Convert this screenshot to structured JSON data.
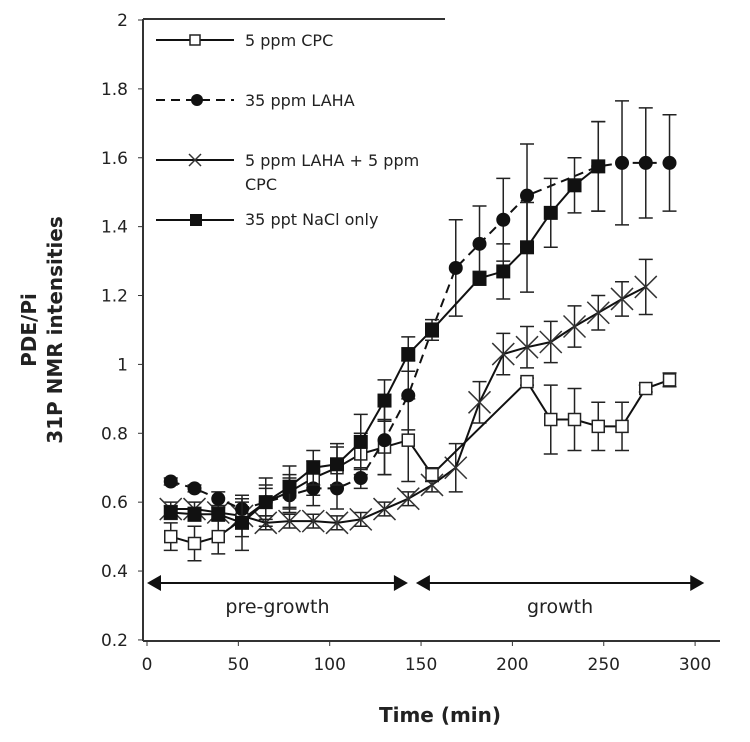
{
  "chart_data": {
    "type": "line",
    "title": "",
    "xlabel": "Time (min)",
    "ylabel": [
      "PDE/Pi",
      "31P NMR intensities"
    ],
    "xlim": [
      0,
      300
    ],
    "ylim": [
      0.2,
      2
    ],
    "xticks": [
      "0",
      "50",
      "100",
      "150",
      "200",
      "250",
      "300"
    ],
    "yticks": [
      "0.2",
      "0.4",
      "0.6",
      "0.8",
      "1",
      "1.2",
      "1.4",
      "1.6",
      "1.8",
      "2"
    ],
    "grid": false,
    "legend_position": "top-left",
    "annotations": [
      {
        "text": "pre-growth",
        "from": 0,
        "to": 145
      },
      {
        "text": "growth",
        "from": 145,
        "to": 305
      }
    ],
    "series": [
      {
        "name": "5 ppm CPC",
        "marker": "open-square",
        "line": "solid",
        "x": [
          13,
          26,
          39,
          52,
          65,
          78,
          91,
          104,
          117,
          130,
          143,
          156,
          208,
          221,
          234,
          247,
          260,
          273,
          286
        ],
        "y": [
          0.5,
          0.48,
          0.5,
          0.55,
          0.6,
          0.63,
          0.67,
          0.7,
          0.74,
          0.76,
          0.78,
          0.68,
          0.95,
          0.84,
          0.84,
          0.82,
          0.82,
          0.93,
          0.955
        ],
        "err": [
          0.04,
          0.05,
          0.05,
          0.05,
          0.05,
          0.05,
          0.05,
          0.06,
          0.06,
          0.08,
          0.12,
          0.02,
          0.01,
          0.1,
          0.09,
          0.07,
          0.07,
          0.01,
          0.02
        ]
      },
      {
        "name": "35 ppm LAHA",
        "marker": "filled-circle",
        "line": "dashed",
        "x": [
          13,
          26,
          39,
          52,
          65,
          78,
          91,
          104,
          117,
          130,
          143,
          156,
          169,
          182,
          195,
          208,
          247,
          260,
          273,
          286
        ],
        "y": [
          0.66,
          0.64,
          0.61,
          0.58,
          0.6,
          0.62,
          0.64,
          0.64,
          0.67,
          0.78,
          0.91,
          1.1,
          1.28,
          1.35,
          1.42,
          1.49,
          1.575,
          1.585,
          1.585,
          1.585
        ],
        "err": [
          0.01,
          0.01,
          0.02,
          0.03,
          0.04,
          0.05,
          0.05,
          0.06,
          0.03,
          0.1,
          0.1,
          0.02,
          0.14,
          0.11,
          0.12,
          0.15,
          0.13,
          0.18,
          0.16,
          0.14
        ]
      },
      {
        "name": "5 ppm LAHA + 5 ppm CPC",
        "marker": "cross",
        "line": "solid",
        "x": [
          13,
          26,
          39,
          52,
          65,
          78,
          91,
          104,
          117,
          130,
          143,
          156,
          169,
          182,
          195,
          208,
          221,
          234,
          247,
          260,
          273
        ],
        "y": [
          0.58,
          0.58,
          0.57,
          0.56,
          0.54,
          0.545,
          0.545,
          0.54,
          0.55,
          0.58,
          0.61,
          0.65,
          0.7,
          0.89,
          1.03,
          1.05,
          1.065,
          1.11,
          1.15,
          1.19,
          1.225
        ],
        "err": [
          0.02,
          0.02,
          0.02,
          0.02,
          0.02,
          0.02,
          0.02,
          0.02,
          0.02,
          0.02,
          0.02,
          0.02,
          0.07,
          0.06,
          0.06,
          0.06,
          0.06,
          0.06,
          0.05,
          0.05,
          0.08
        ]
      },
      {
        "name": "35 ppt NaCl only",
        "marker": "filled-square",
        "line": "solid",
        "x": [
          13,
          26,
          39,
          52,
          65,
          78,
          91,
          104,
          117,
          130,
          143,
          156,
          182,
          195,
          208,
          221,
          234,
          247
        ],
        "y": [
          0.57,
          0.565,
          0.565,
          0.54,
          0.6,
          0.645,
          0.7,
          0.71,
          0.775,
          0.895,
          1.03,
          1.1,
          1.25,
          1.27,
          1.34,
          1.44,
          1.52,
          1.575
        ],
        "err": [
          0.02,
          0.02,
          0.02,
          0.08,
          0.07,
          0.06,
          0.05,
          0.06,
          0.08,
          0.06,
          0.05,
          0.03,
          0.02,
          0.08,
          0.13,
          0.1,
          0.08,
          0.13
        ]
      }
    ]
  }
}
